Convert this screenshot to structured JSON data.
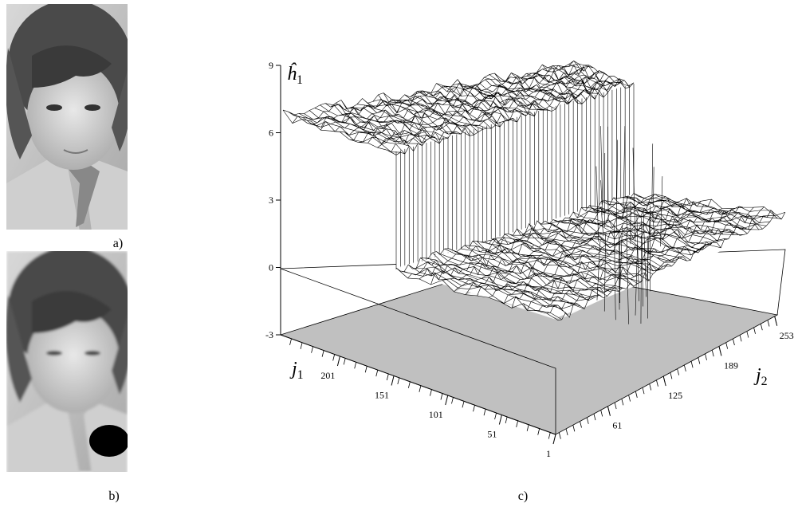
{
  "panels": {
    "a": {
      "label": "a)"
    },
    "b": {
      "label": "b)"
    },
    "c": {
      "label": "c)"
    }
  },
  "plot": {
    "z_axis": {
      "symbol": "ĥ",
      "subscript": "1",
      "lim": [
        -3,
        9
      ],
      "ticks": [
        9,
        6,
        3,
        0,
        -3
      ]
    },
    "j1_axis": {
      "symbol": "j",
      "subscript": "1",
      "lim": [
        1,
        256
      ],
      "ticks": [
        1,
        51,
        101,
        151,
        201
      ]
    },
    "j2_axis": {
      "symbol": "j",
      "subscript": "2",
      "lim": [
        1,
        256
      ],
      "ticks": [
        61,
        125,
        189,
        253
      ]
    }
  }
}
